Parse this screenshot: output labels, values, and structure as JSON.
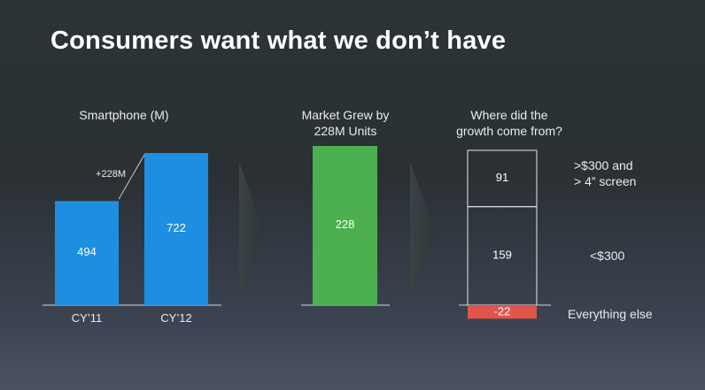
{
  "title": "Consumers want what we don’t have",
  "chart_data": [
    {
      "type": "bar",
      "title": "Smartphone (M)",
      "categories": [
        "CY'11",
        "CY'12"
      ],
      "category_labels": [
        "CY’11",
        "CY’12"
      ],
      "values": [
        494,
        722
      ],
      "annotation": "+228M",
      "color": "#1e8fe0"
    },
    {
      "type": "bar",
      "title": "Market Grew by 228M Units",
      "categories": [
        ""
      ],
      "values": [
        228
      ],
      "color": "#4caf50"
    },
    {
      "type": "bar",
      "title": "Where did the growth come from?",
      "stacked": true,
      "segments": [
        {
          "label": ">$300 and > 4” screen",
          "value": 91
        },
        {
          "label": "<$300",
          "value": 159
        },
        {
          "label": "Everything else",
          "value": -22
        }
      ],
      "negative_color": "#e0544a"
    }
  ],
  "labels": {
    "smartphone": "Smartphone (M)",
    "market_line1": "Market Grew by",
    "market_line2": "228M Units",
    "where_line1": "Where did the",
    "where_line2": "growth come from?",
    "seg1_line1": ">$300 and",
    "seg1_line2": "> 4” screen",
    "seg2": "<$300",
    "seg3": "Everything else"
  }
}
